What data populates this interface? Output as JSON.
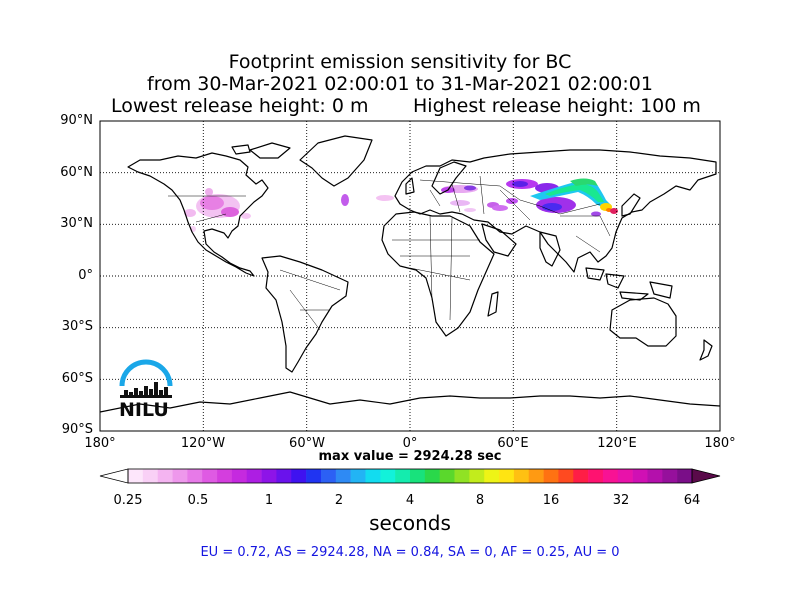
{
  "title": {
    "line1": "Footprint emission sensitivity for BC",
    "line2": "from 30-Mar-2021 02:00:01 to 31-Mar-2021 02:00:01",
    "line3_left": "Lowest release height: 0 m",
    "line3_right": "Highest release height: 100 m"
  },
  "map": {
    "projection": "equirectangular",
    "lon_range": [
      -180,
      180
    ],
    "lat_range": [
      -90,
      90
    ],
    "grid": "dotted",
    "lat_labels": [
      "90°N",
      "60°N",
      "30°N",
      "0°",
      "30°S",
      "60°S",
      "90°S"
    ],
    "lon_labels": [
      "180°",
      "120°W",
      "60°W",
      "0°",
      "60°E",
      "120°E",
      "180°"
    ]
  },
  "max_value_label": "max value = 2924.28 sec",
  "colorbar": {
    "tick_labels": [
      "0.25",
      "0.5",
      "1",
      "2",
      "4",
      "8",
      "16",
      "32",
      "64"
    ],
    "units": "seconds"
  },
  "logo": {
    "text": "NILU",
    "color": "#1aa7e8"
  },
  "summary": "EU = 0.72,  AS = 2924.28,  NA = 0.84,  SA = 0,  AF = 0.25,  AU = 0",
  "colors": {
    "summary_text": "#1515e0",
    "coast": "#000000"
  }
}
